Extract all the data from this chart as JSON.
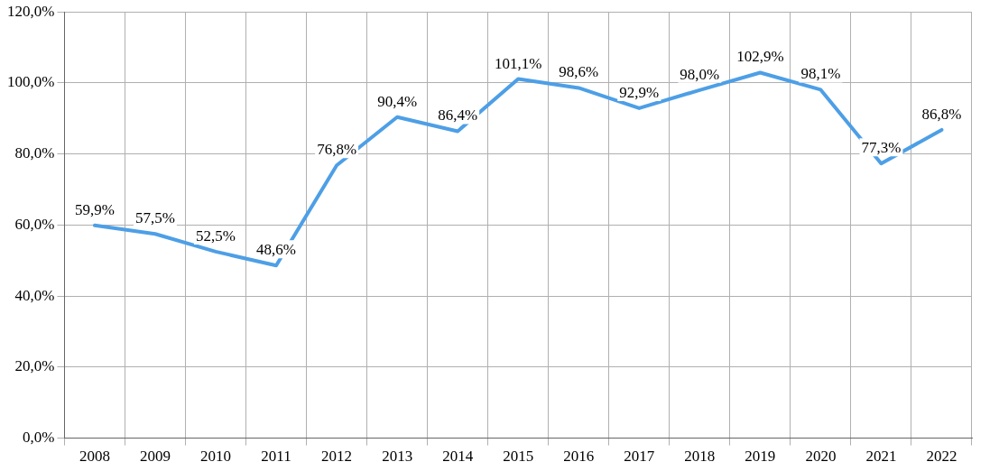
{
  "chart_data": {
    "type": "line",
    "categories": [
      "2008",
      "2009",
      "2010",
      "2011",
      "2012",
      "2013",
      "2014",
      "2015",
      "2016",
      "2017",
      "2018",
      "2019",
      "2020",
      "2021",
      "2022"
    ],
    "series": [
      {
        "color": "#4d9fe6",
        "values": [
          59.9,
          57.5,
          52.5,
          48.6,
          76.8,
          90.4,
          86.4,
          101.1,
          98.6,
          92.9,
          98.0,
          102.9,
          98.1,
          77.3,
          86.8
        ],
        "value_labels": [
          "59,9%",
          "57,5%",
          "52,5%",
          "48,6%",
          "76,8%",
          "90,4%",
          "86,4%",
          "101,1%",
          "98,6%",
          "92,9%",
          "98,0%",
          "102,9%",
          "98,1%",
          "77,3%",
          "86,8%"
        ]
      }
    ],
    "ylim": [
      0,
      120
    ],
    "yticks": [
      {
        "value": 0,
        "label": "0,0%"
      },
      {
        "value": 20,
        "label": "20,0%"
      },
      {
        "value": 40,
        "label": "40,0%"
      },
      {
        "value": 60,
        "label": "60,0%"
      },
      {
        "value": 80,
        "label": "80,0%"
      },
      {
        "value": 100,
        "label": "100,0%"
      },
      {
        "value": 120,
        "label": "120,0%"
      }
    ],
    "grid": true,
    "legend": false,
    "marker": "none",
    "line_style": "solid"
  }
}
